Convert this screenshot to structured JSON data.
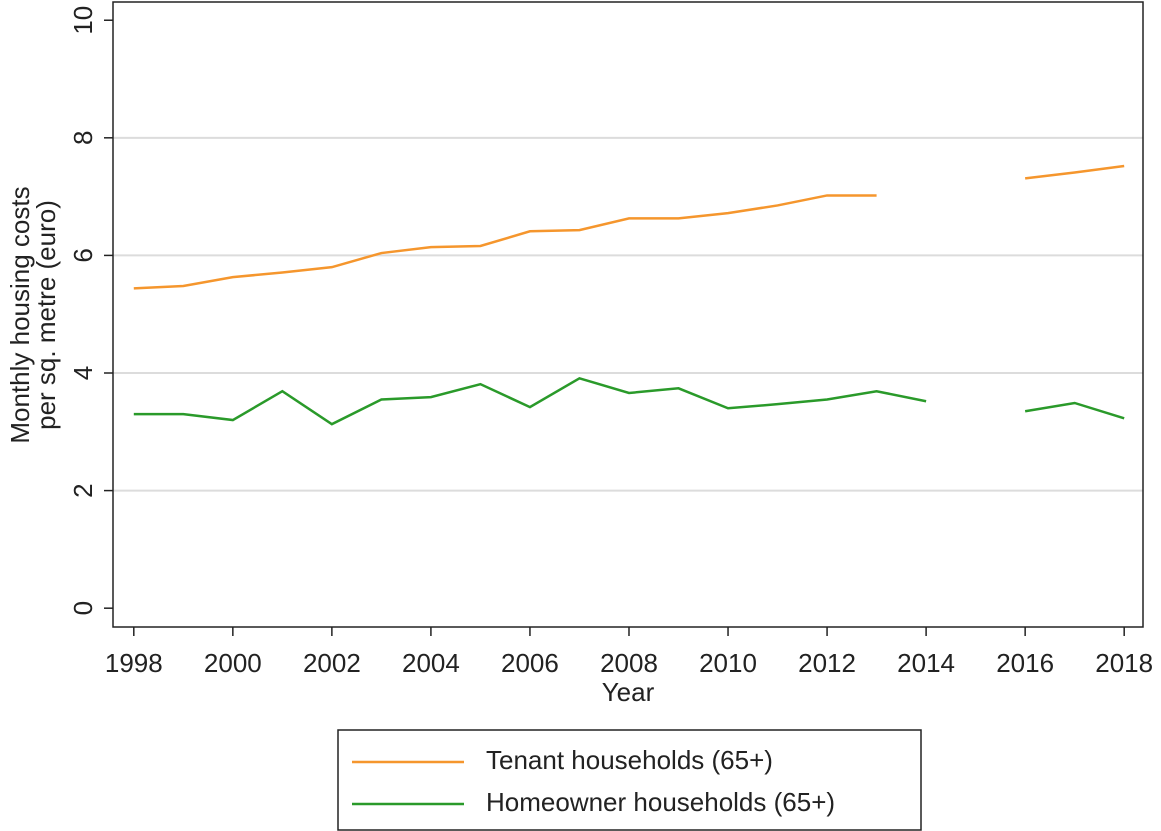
{
  "chart_data": {
    "type": "line",
    "x_label": "Year",
    "y_label": [
      "Monthly housing costs",
      "per sq. metre (euro)"
    ],
    "x": [
      1998,
      1999,
      2000,
      2001,
      2002,
      2003,
      2004,
      2005,
      2006,
      2007,
      2008,
      2009,
      2010,
      2011,
      2012,
      2013,
      2014,
      2015,
      2016,
      2017,
      2018
    ],
    "series": [
      {
        "name": "Tenant households (65+)",
        "color": "#f5962d",
        "values": [
          5.44,
          5.48,
          5.63,
          5.71,
          5.8,
          6.04,
          6.14,
          6.16,
          6.41,
          6.43,
          6.63,
          6.63,
          6.72,
          6.85,
          7.02,
          7.02,
          null,
          null,
          7.31,
          7.41,
          7.52
        ]
      },
      {
        "name": "Homeowner households (65+)",
        "color": "#2a9a2a",
        "values": [
          3.3,
          3.3,
          3.2,
          3.69,
          3.13,
          3.55,
          3.59,
          3.81,
          3.42,
          3.91,
          3.66,
          3.74,
          3.4,
          3.47,
          3.55,
          3.69,
          3.52,
          null,
          3.35,
          3.49,
          3.23
        ]
      }
    ],
    "xlim": [
      1997.58,
      2018.38
    ],
    "xticks": [
      1998,
      2000,
      2002,
      2004,
      2006,
      2008,
      2010,
      2012,
      2014,
      2016,
      2018
    ],
    "ylim": [
      -0.32,
      10.31
    ],
    "yticks": [
      0,
      2,
      4,
      6,
      8,
      10
    ],
    "grid": true,
    "legend": "bottom"
  }
}
